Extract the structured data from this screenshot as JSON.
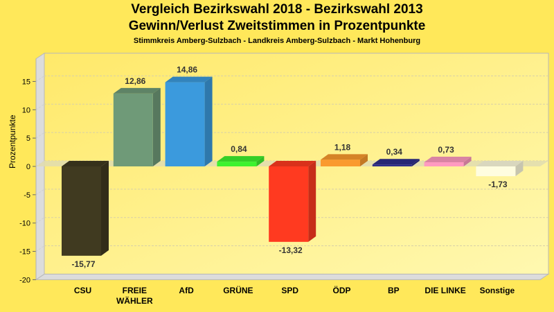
{
  "chart_data": {
    "type": "bar",
    "title": "Vergleich Bezirkswahl 2018 - Bezirkswahl 2013",
    "subtitle": "Gewinn/Verlust Zweitstimmen in Prozentpunkte",
    "subsubtitle": "Stimmkreis Amberg-Sulzbach - Landkreis Amberg-Sulzbach - Markt Hohenburg",
    "xlabel": "",
    "ylabel": "Prozentpunkte",
    "ylim": [
      -20,
      19
    ],
    "yticks": [
      15,
      10,
      5,
      0,
      -5,
      -10,
      -15,
      -20
    ],
    "ytick_labels": [
      "15",
      "10",
      "5",
      "0",
      "-5",
      "-10",
      "-15",
      "-20"
    ],
    "grid": true,
    "style": "3d-bar",
    "categories": [
      "CSU",
      "FREIE WÄHLER",
      "AfD",
      "GRÜNE",
      "SPD",
      "ÖDP",
      "BP",
      "DIE LINKE",
      "Sonstige"
    ],
    "category_lines": [
      [
        "CSU"
      ],
      [
        "FREIE",
        "WÄHLER"
      ],
      [
        "AfD"
      ],
      [
        "GRÜNE"
      ],
      [
        "SPD"
      ],
      [
        "ÖDP"
      ],
      [
        "BP"
      ],
      [
        "DIE LINKE"
      ],
      [
        "Sonstige"
      ]
    ],
    "values": [
      -15.77,
      12.86,
      14.86,
      0.84,
      -13.32,
      1.18,
      0.34,
      0.73,
      -1.73
    ],
    "value_labels": [
      "-15,77",
      "12,86",
      "14,86",
      "0,84",
      "-13,32",
      "1,18",
      "0,34",
      "0,73",
      "-1,73"
    ],
    "colors": [
      "#403a20",
      "#6f9a78",
      "#3b9add",
      "#3df22e",
      "#ff3a20",
      "#fa9a2e",
      "#2e2e8a",
      "#ff9ac0",
      "#fffde0"
    ]
  },
  "colors": {
    "background": "#ffe85a",
    "plot_back": "#fff4a0",
    "wall": "#dcdcdc",
    "grid": "#d8d0a8"
  }
}
